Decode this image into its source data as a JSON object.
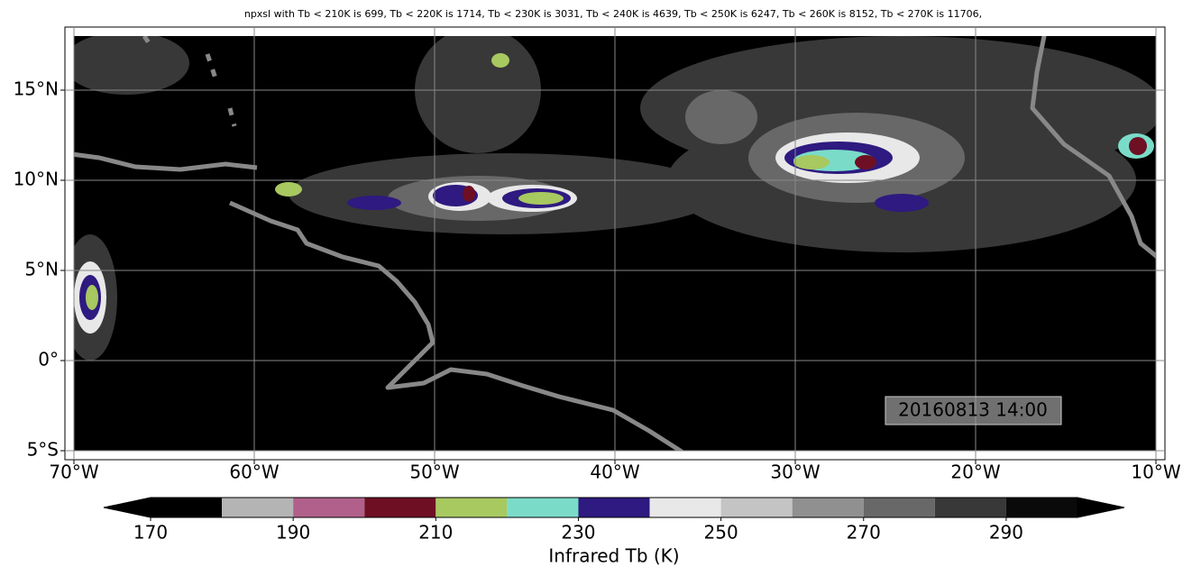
{
  "chart_data": {
    "type": "map",
    "title": "npxsl with Tb < 210K is 699,  Tb < 220K is 1714,  Tb < 230K is 3031,  Tb < 240K is 4639,  Tb < 250K is 6247,  Tb < 260K is 8152,  Tb < 270K is 11706,",
    "annotation": "20160813 14:00",
    "xlim": [
      -70.5,
      -9.5
    ],
    "ylim": [
      -5.5,
      18.5
    ],
    "xticks": [
      {
        "value": -70,
        "label": "70°W"
      },
      {
        "value": -60,
        "label": "60°W"
      },
      {
        "value": -50,
        "label": "50°W"
      },
      {
        "value": -40,
        "label": "40°W"
      },
      {
        "value": -30,
        "label": "30°W"
      },
      {
        "value": -20,
        "label": "20°W"
      },
      {
        "value": -10,
        "label": "10°W"
      }
    ],
    "yticks": [
      {
        "value": -5,
        "label": "5°S"
      },
      {
        "value": 0,
        "label": "0°"
      },
      {
        "value": 5,
        "label": "5°N"
      },
      {
        "value": 10,
        "label": "10°N"
      },
      {
        "value": 15,
        "label": "15°N"
      }
    ],
    "grid": true,
    "colorbar": {
      "label": "Infrared Tb (K)",
      "bounds": [
        170,
        180,
        190,
        200,
        210,
        220,
        230,
        240,
        250,
        260,
        270,
        280,
        290,
        300
      ],
      "colors": [
        "#000000",
        "#b4b4b4",
        "#b0608a",
        "#6e0f24",
        "#a8c860",
        "#7adcc8",
        "#2e1a80",
        "#e8e8e8",
        "#c4c4c4",
        "#909090",
        "#686868",
        "#383838",
        "#0a0a0a"
      ],
      "extend": "both",
      "under_color": "#000000",
      "over_color": "#000000",
      "ticks": [
        170,
        190,
        210,
        230,
        250,
        270,
        290
      ]
    }
  }
}
